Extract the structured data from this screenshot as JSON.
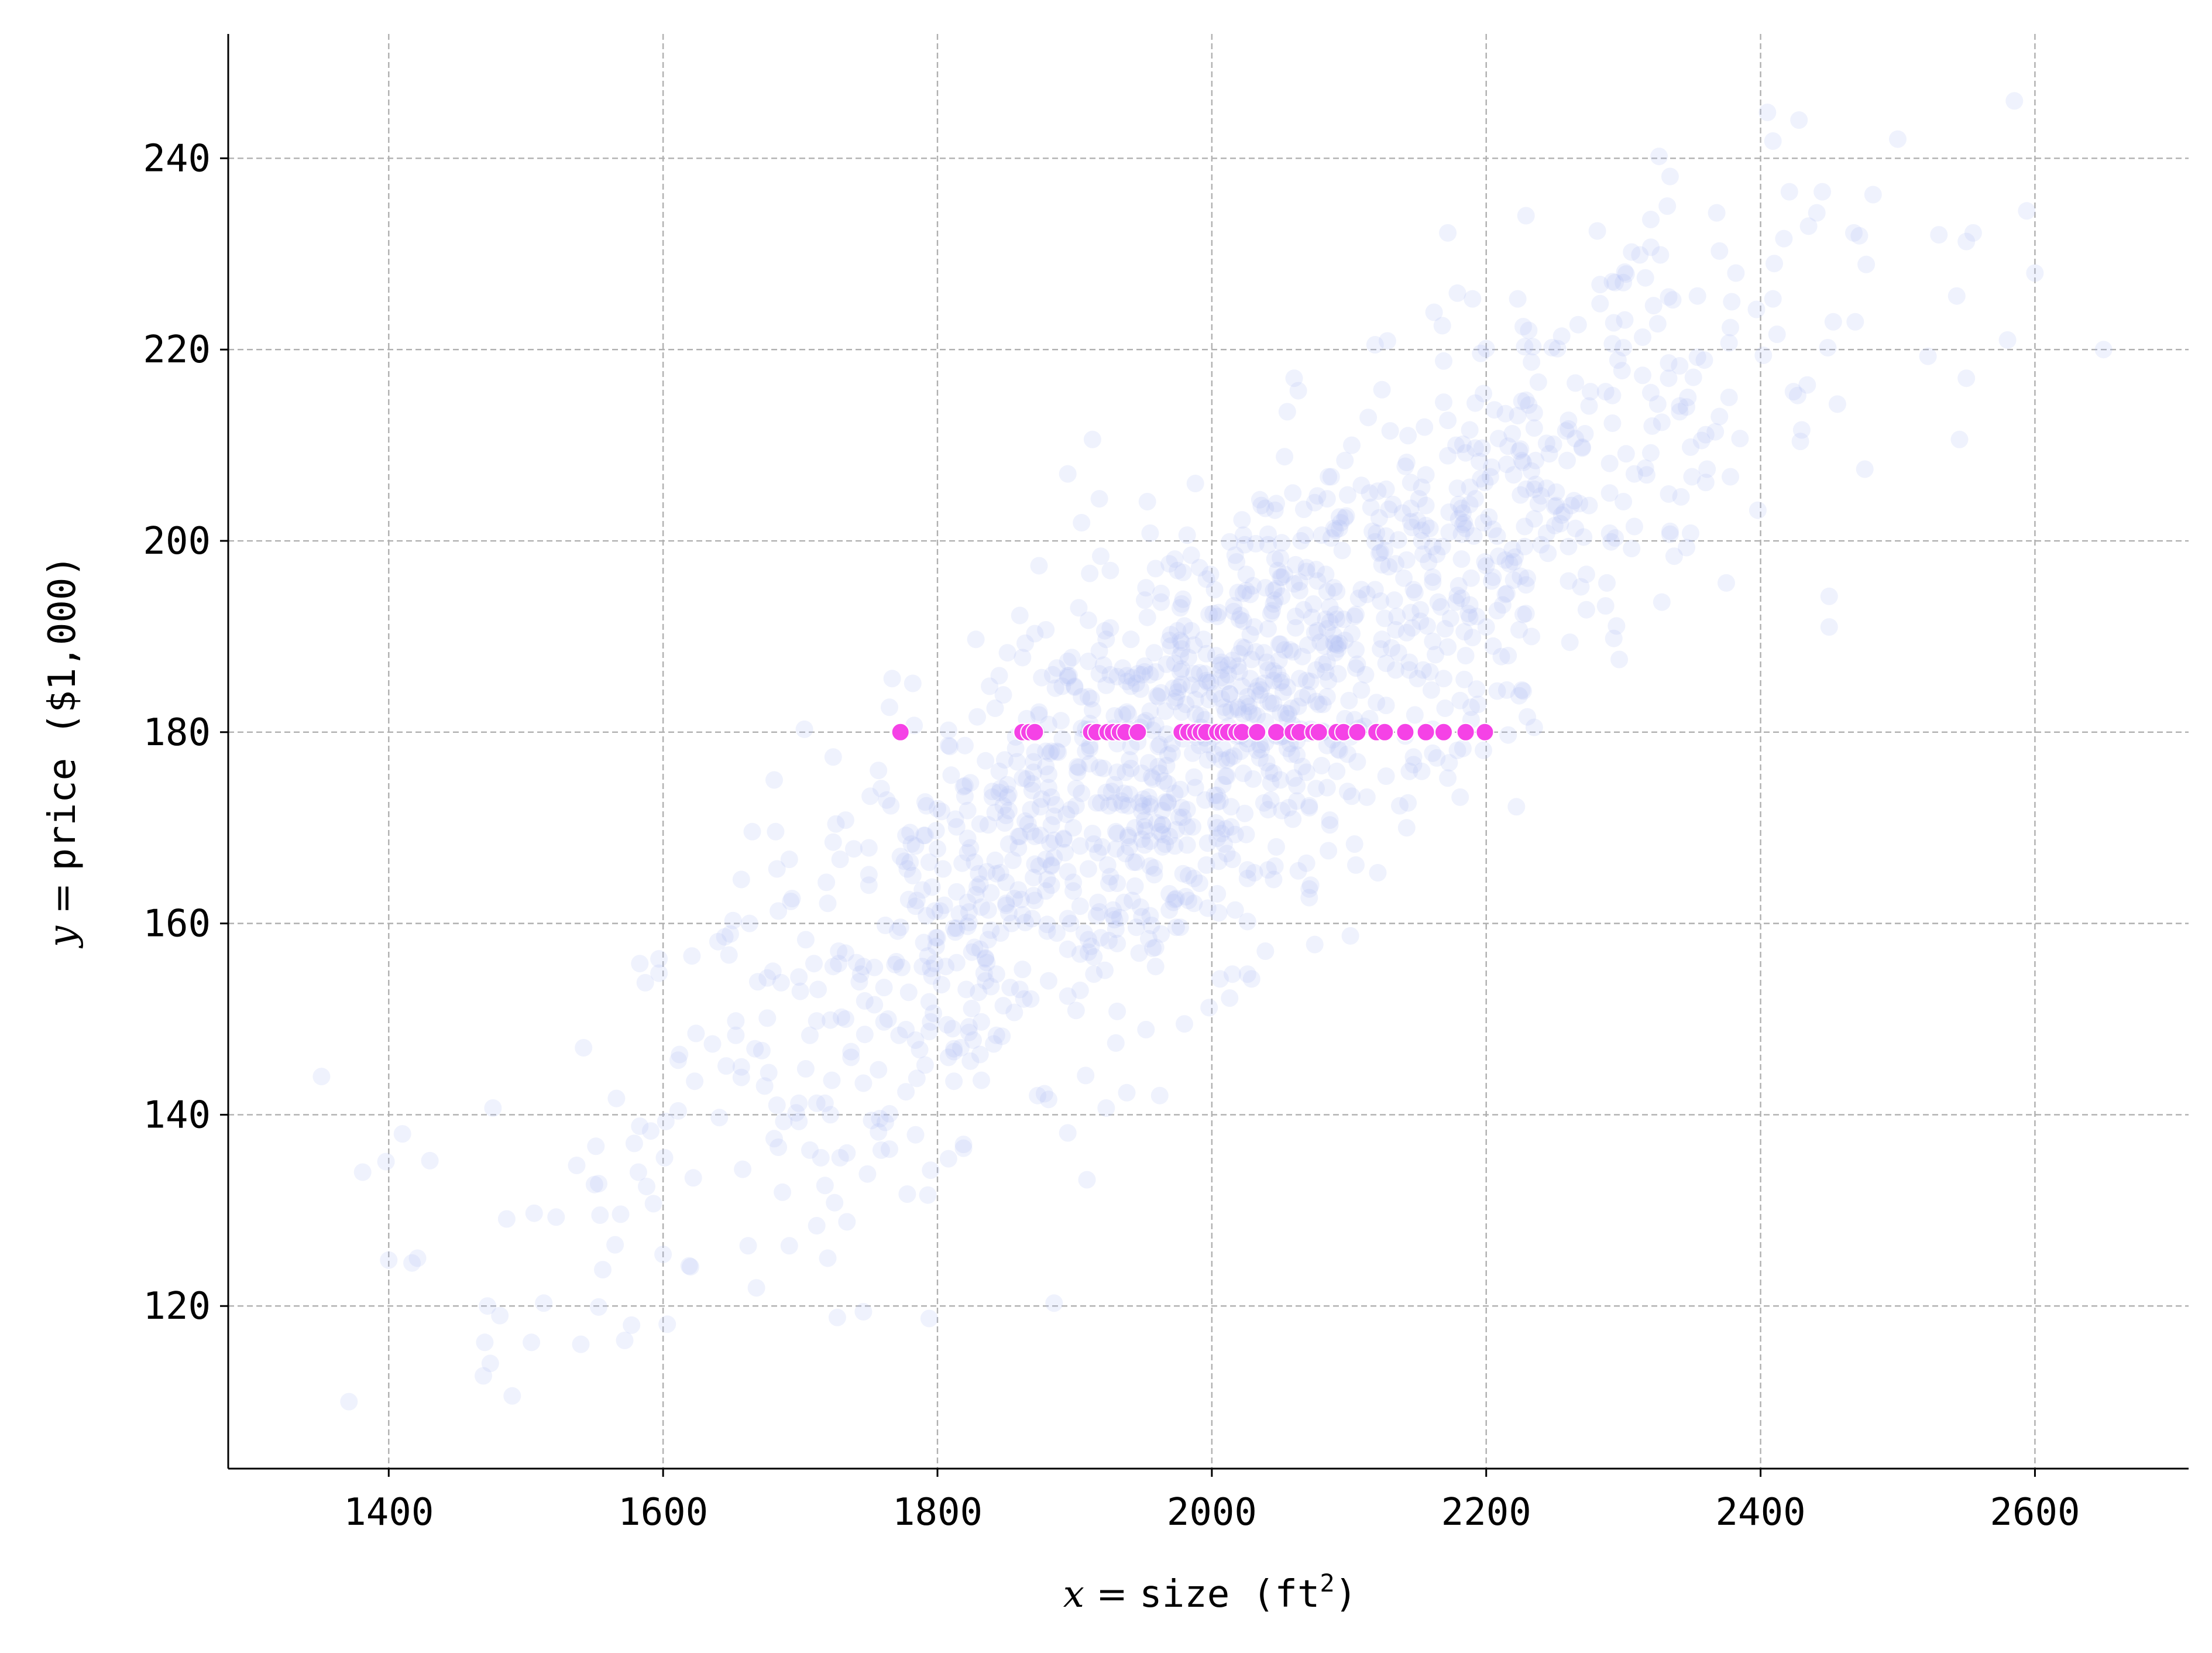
{
  "chart_data": {
    "type": "scatter",
    "xlabel": {
      "var": "x",
      "eq": " = ",
      "text": "size (ft",
      "sup": "2",
      "close": ")"
    },
    "ylabel": {
      "var": "y",
      "eq": " = ",
      "text": "price ($1,000)"
    },
    "xlim": [
      1283,
      2712
    ],
    "ylim": [
      103,
      253
    ],
    "x_ticks": [
      "1400",
      "1600",
      "1800",
      "2000",
      "2200",
      "2400",
      "2600"
    ],
    "y_ticks": [
      "120",
      "140",
      "160",
      "180",
      "200",
      "220",
      "240"
    ],
    "grid": true,
    "background_cloud": {
      "description_of_shape": "dense elongated cloud of faint points running from lower-left to upper-right",
      "color": "#aebcf5",
      "opacity": 0.2,
      "count": 1500,
      "x_range": [
        1345,
        2650
      ],
      "y_range": [
        110,
        246
      ],
      "points": [
        [
          1351,
          144
        ],
        [
          1371,
          110
        ],
        [
          1381,
          134
        ],
        [
          1410,
          138
        ],
        [
          1474,
          114
        ],
        [
          1481,
          119
        ],
        [
          1540,
          116
        ],
        [
          1577,
          118
        ],
        [
          2585,
          246
        ],
        [
          2500,
          242
        ],
        [
          2428,
          244
        ],
        [
          2410,
          229
        ],
        [
          2530,
          232
        ],
        [
          2600,
          228
        ],
        [
          2650,
          220
        ],
        [
          2580,
          221
        ],
        [
          2550,
          217
        ],
        [
          1895,
          207
        ],
        [
          2450,
          191
        ],
        [
          1720,
          125
        ]
      ]
    },
    "series": [
      {
        "color": "#f542e6",
        "y": 180,
        "x": [
          1773,
          1862,
          1867,
          1871,
          1912,
          1916,
          1924,
          1928,
          1933,
          1937,
          1946,
          1978,
          1983,
          1988,
          1992,
          1996,
          2004,
          2008,
          2012,
          2018,
          2022,
          2033,
          2047,
          2059,
          2064,
          2074,
          2078,
          2091,
          2096,
          2106,
          2120,
          2126,
          2141,
          2156,
          2169,
          2185,
          2199
        ]
      }
    ]
  }
}
